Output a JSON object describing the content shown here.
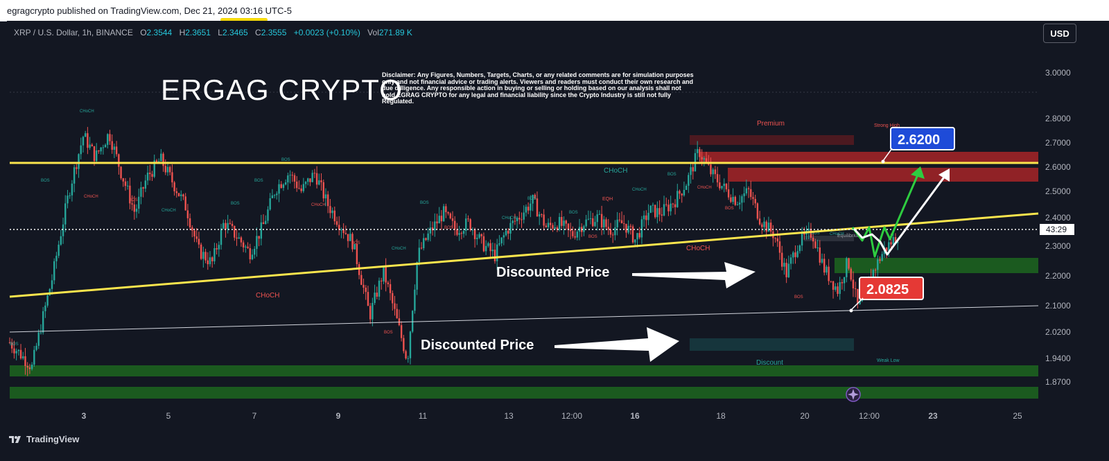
{
  "header": {
    "publisher": "egragcrypto published on TradingView.com, Dec 21, 2024 03:16 UTC-5"
  },
  "symbol_bar": {
    "symbol": "XRP / U.S. Dollar, 1h, BINANCE",
    "open_label": "O",
    "open": "2.3544",
    "high_label": "H",
    "high": "2.3651",
    "low_label": "L",
    "low": "2.3465",
    "close_label": "C",
    "close": "2.3555",
    "change": "+0.0023 (+0.10%)",
    "vol_label": "Vol",
    "volume": "271.89 K"
  },
  "currency_button": "USD",
  "overlay": {
    "brand": "ERGAG CRYPTO",
    "disclaimer": "Disclaimer: Any Figures, Numbers, Targets, Charts, or any related comments are for simulation purposes only and not financial advice or trading alerts. Viewers and readers must conduct their own research and due dilligence. Any responsible action in buying or selling or holding based on our analysis shall not hold EGRAG CRYPTO for any legal and financial liability since the Crypto Industry is still not fully Regulated."
  },
  "footer": {
    "logo": "TradingView"
  },
  "colors": {
    "background": "#131722",
    "up": "#26a69a",
    "down": "#ef5350",
    "yellow_line": "#fbe54d",
    "zone_green": "#1b5e20",
    "zone_red": "#b71c1c",
    "label_blue": "#1e4bd8",
    "label_red": "#e53935"
  },
  "chart_data": {
    "type": "candlestick",
    "symbol": "XRP / U.S. Dollar",
    "timeframe": "1h",
    "y_axis": {
      "ticks": [
        "3.0000",
        "2.8000",
        "2.7000",
        "2.6000",
        "2.5000",
        "2.4000",
        "2.3000",
        "2.2000",
        "2.1000",
        "2.0200",
        "1.9400",
        "1.8700"
      ],
      "range": [
        1.83,
        3.1
      ],
      "scale": "log"
    },
    "x_axis": {
      "ticks": [
        "3",
        "5",
        "7",
        "9",
        "11",
        "13",
        "12:00",
        "16",
        "18",
        "20",
        "12:00",
        "23",
        "25"
      ],
      "bold_ticks": [
        "16"
      ]
    },
    "last_price": {
      "value": 2.3555,
      "countdown": "43:29"
    },
    "price_path": [
      [
        0,
        1.97
      ],
      [
        1.3,
        1.89
      ],
      [
        2.5,
        2.2
      ],
      [
        3.5,
        2.55
      ],
      [
        4.3,
        2.79
      ],
      [
        5,
        2.69
      ],
      [
        5.8,
        2.8
      ],
      [
        6.5,
        2.62
      ],
      [
        7.3,
        2.45
      ],
      [
        8.0,
        2.6
      ],
      [
        8.8,
        2.68
      ],
      [
        9.5,
        2.58
      ],
      [
        10.3,
        2.47
      ],
      [
        11.0,
        2.3
      ],
      [
        11.8,
        2.25
      ],
      [
        12.5,
        2.41
      ],
      [
        13.3,
        2.35
      ],
      [
        14.0,
        2.29
      ],
      [
        14.8,
        2.4
      ],
      [
        15.5,
        2.55
      ],
      [
        16.3,
        2.62
      ],
      [
        17.0,
        2.54
      ],
      [
        17.8,
        2.62
      ],
      [
        18.5,
        2.49
      ],
      [
        19.3,
        2.4
      ],
      [
        20.0,
        2.33
      ],
      [
        21.0,
        2.06
      ],
      [
        21.8,
        2.22
      ],
      [
        22.6,
        2.04
      ],
      [
        23.2,
        1.91
      ],
      [
        23.8,
        2.28
      ],
      [
        24.5,
        2.37
      ],
      [
        25.3,
        2.45
      ],
      [
        26.0,
        2.38
      ],
      [
        26.8,
        2.41
      ],
      [
        27.5,
        2.33
      ],
      [
        28.3,
        2.28
      ],
      [
        29.0,
        2.38
      ],
      [
        29.8,
        2.44
      ],
      [
        30.5,
        2.5
      ],
      [
        31.3,
        2.39
      ],
      [
        32.0,
        2.41
      ],
      [
        32.8,
        2.36
      ],
      [
        33.5,
        2.41
      ],
      [
        34.3,
        2.43
      ],
      [
        35.0,
        2.38
      ],
      [
        35.8,
        2.41
      ],
      [
        36.5,
        2.34
      ],
      [
        37.3,
        2.46
      ],
      [
        38.0,
        2.45
      ],
      [
        38.8,
        2.5
      ],
      [
        39.5,
        2.58
      ],
      [
        40.2,
        2.72
      ],
      [
        40.9,
        2.62
      ],
      [
        41.7,
        2.55
      ],
      [
        42.4,
        2.5
      ],
      [
        43.1,
        2.54
      ],
      [
        43.8,
        2.42
      ],
      [
        44.6,
        2.36
      ],
      [
        45.3,
        2.21
      ],
      [
        46.0,
        2.33
      ],
      [
        46.8,
        2.37
      ],
      [
        47.5,
        2.23
      ],
      [
        48.3,
        2.15
      ],
      [
        48.9,
        2.26
      ],
      [
        49.5,
        2.08
      ],
      [
        50.2,
        2.2
      ],
      [
        51.0,
        2.3
      ],
      [
        51.8,
        2.36
      ]
    ],
    "zones": [
      {
        "label": "Premium",
        "top": 2.72,
        "bottom": 2.68,
        "color": "red-faint"
      },
      {
        "label": "",
        "top": 2.66,
        "bottom": 2.615,
        "color": "red"
      },
      {
        "label": "",
        "top": 2.59,
        "bottom": 2.545,
        "color": "red"
      },
      {
        "label": "Equilibrium",
        "top": 2.345,
        "bottom": 2.325,
        "color": "gray"
      },
      {
        "label": "",
        "top": 2.255,
        "bottom": 2.205,
        "color": "green"
      },
      {
        "label": "Discount",
        "top": 1.99,
        "bottom": 1.965,
        "color": "teal-faint"
      },
      {
        "label": "",
        "top": 1.915,
        "bottom": 1.885,
        "color": "green"
      },
      {
        "label": "",
        "top": 1.865,
        "bottom": 1.835,
        "color": "green"
      }
    ],
    "horizontal_lines": [
      {
        "value": 2.62,
        "color": "yellow",
        "label": "2.6200"
      },
      {
        "value": 2.36,
        "style": "dotted",
        "color": "white"
      }
    ],
    "trend_lines": [
      {
        "from": [
          0,
          2.13
        ],
        "to": [
          60,
          2.42
        ],
        "color": "yellow"
      },
      {
        "from": [
          0,
          2.02
        ],
        "to": [
          60,
          2.1
        ],
        "color": "white"
      }
    ],
    "price_labels": [
      {
        "text": "2.6200",
        "color": "blue"
      },
      {
        "text": "2.0825",
        "color": "red"
      }
    ],
    "annotations": [
      {
        "text": "Discounted Price",
        "arrow": "right"
      },
      {
        "text": "Discounted Price",
        "arrow": "right"
      }
    ],
    "small_labels": [
      "CHoCH",
      "CHoCH",
      "CHoCH",
      "CHoCH",
      "CHoCH",
      "CHoCH",
      "CHoCH",
      "CHoCH",
      "CHoCH",
      "CHoCH",
      "CHoCH",
      "CHoCH",
      "BOS",
      "BOS",
      "BOS",
      "BOS",
      "BOS",
      "BOS",
      "BOS",
      "BOS",
      "BOS",
      "BOS",
      "BOS",
      "BOS",
      "BOS",
      "BOS",
      "BOS",
      "BOS",
      "BOS",
      "EQH",
      "Strong High",
      "Weak Low",
      "Premium",
      "Equilibrium",
      "Discount"
    ],
    "projected_paths": [
      {
        "color": "green",
        "points": [
          [
            51.8,
            2.36
          ],
          [
            52.8,
            2.27
          ],
          [
            53.6,
            2.36
          ],
          [
            54.4,
            2.28
          ],
          [
            56.0,
            2.58
          ]
        ]
      },
      {
        "color": "white",
        "points": [
          [
            51.8,
            2.36
          ],
          [
            53.0,
            2.3
          ],
          [
            54.0,
            2.34
          ],
          [
            55.0,
            2.27
          ],
          [
            57.5,
            2.58
          ]
        ]
      }
    ]
  }
}
